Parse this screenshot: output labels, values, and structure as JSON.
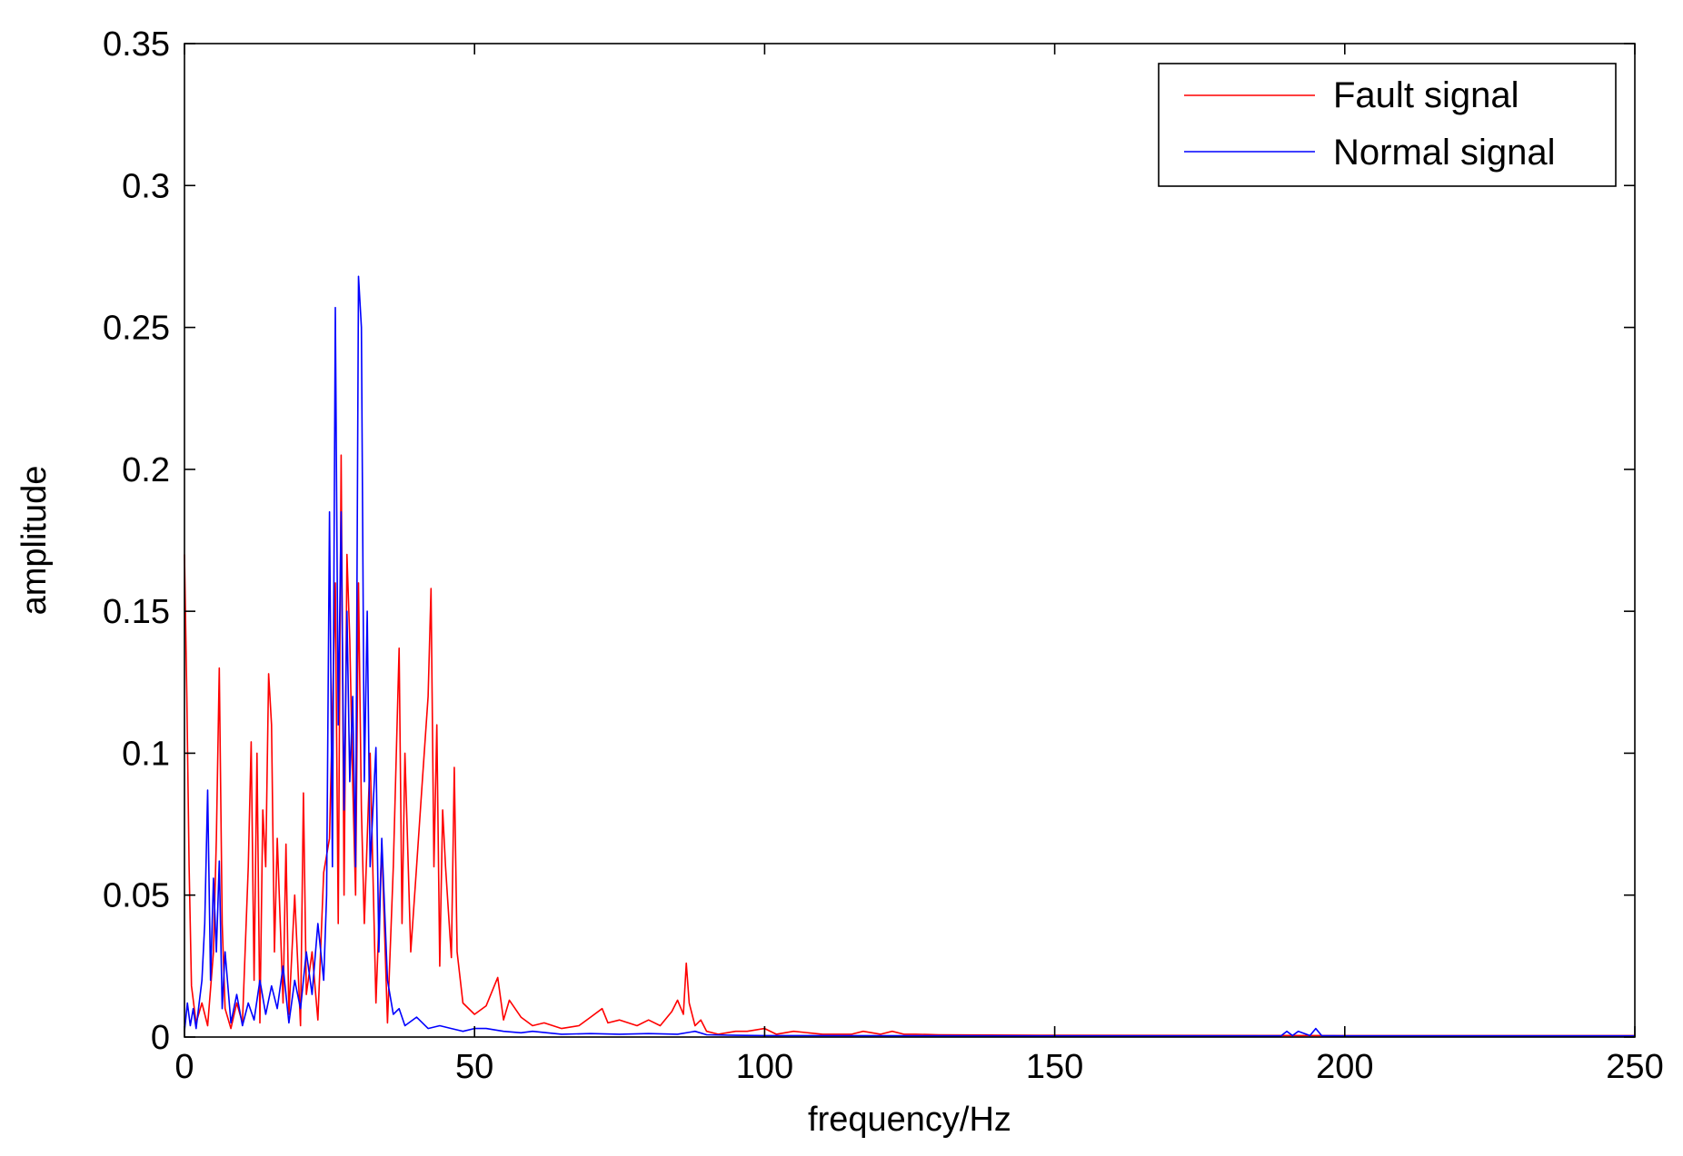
{
  "chart_data": {
    "type": "line",
    "title": "",
    "xlabel": "frequency/Hz",
    "ylabel": "amplitude",
    "xlim": [
      0,
      250
    ],
    "ylim": [
      0,
      0.35
    ],
    "xticks": [
      0,
      50,
      100,
      150,
      200,
      250
    ],
    "xtick_labels": [
      "0",
      "50",
      "100",
      "150",
      "200",
      "250"
    ],
    "yticks": [
      0,
      0.05,
      0.1,
      0.15,
      0.2,
      0.25,
      0.3,
      0.35
    ],
    "ytick_labels": [
      "0",
      "0.05",
      "0.1",
      "0.15",
      "0.2",
      "0.25",
      "0.3",
      "0.35"
    ],
    "grid": false,
    "legend_position": "top-right",
    "series": [
      {
        "name": "Fault signal",
        "color": "#ff0000",
        "x": [
          0,
          0.4,
          0.8,
          1.2,
          2,
          3,
          4,
          5,
          5.5,
          6,
          6.5,
          7,
          8,
          9,
          10,
          11,
          11.5,
          12,
          12.5,
          13,
          13.5,
          14,
          14.5,
          15,
          15.5,
          16,
          17,
          17.5,
          18,
          19,
          20,
          20.5,
          21,
          22,
          23,
          24,
          25,
          26,
          26.5,
          27,
          27.5,
          28,
          28.5,
          29,
          29.5,
          30,
          30.5,
          31,
          32,
          33,
          34,
          35,
          36,
          37,
          37.5,
          38,
          39,
          40,
          41,
          42,
          42.5,
          43,
          43.5,
          44,
          44.5,
          45,
          46,
          46.5,
          47,
          48,
          50,
          52,
          54,
          55,
          56,
          58,
          60,
          62,
          65,
          68,
          70,
          72,
          73,
          75,
          78,
          80,
          82,
          84,
          85,
          86,
          86.5,
          87,
          88,
          89,
          90,
          92,
          95,
          97,
          100,
          102,
          105,
          110,
          115,
          117,
          120,
          122,
          124,
          126,
          130,
          150,
          200,
          250
        ],
        "y": [
          0.17,
          0.12,
          0.06,
          0.018,
          0.005,
          0.012,
          0.004,
          0.03,
          0.07,
          0.13,
          0.04,
          0.01,
          0.003,
          0.012,
          0.005,
          0.06,
          0.104,
          0.02,
          0.1,
          0.005,
          0.08,
          0.06,
          0.128,
          0.11,
          0.03,
          0.07,
          0.012,
          0.068,
          0.008,
          0.05,
          0.004,
          0.086,
          0.015,
          0.03,
          0.006,
          0.058,
          0.07,
          0.16,
          0.04,
          0.205,
          0.05,
          0.17,
          0.14,
          0.09,
          0.05,
          0.16,
          0.08,
          0.04,
          0.1,
          0.012,
          0.068,
          0.005,
          0.06,
          0.137,
          0.04,
          0.1,
          0.03,
          0.06,
          0.09,
          0.12,
          0.158,
          0.06,
          0.11,
          0.025,
          0.08,
          0.06,
          0.028,
          0.095,
          0.03,
          0.012,
          0.008,
          0.011,
          0.021,
          0.006,
          0.013,
          0.007,
          0.004,
          0.005,
          0.003,
          0.004,
          0.007,
          0.01,
          0.005,
          0.006,
          0.004,
          0.006,
          0.004,
          0.009,
          0.013,
          0.008,
          0.026,
          0.012,
          0.004,
          0.006,
          0.002,
          0.001,
          0.002,
          0.002,
          0.003,
          0.001,
          0.002,
          0.001,
          0.001,
          0.002,
          0.001,
          0.002,
          0.001,
          0.001,
          0.0008,
          0.0006,
          0.0005,
          0.0005
        ]
      },
      {
        "name": "Normal signal",
        "color": "#0000ff",
        "x": [
          0,
          0.5,
          1,
          1.5,
          2,
          3,
          3.5,
          4,
          4.5,
          5,
          5.5,
          6,
          6.5,
          7,
          8,
          9,
          10,
          11,
          12,
          13,
          14,
          15,
          16,
          17,
          18,
          19,
          20,
          21,
          22,
          23,
          24,
          24.5,
          25,
          25.5,
          26,
          26.5,
          27,
          27.5,
          28,
          28.5,
          29,
          29.5,
          30,
          30.5,
          31,
          31.5,
          32,
          33,
          33.5,
          34,
          35,
          36,
          37,
          38,
          40,
          42,
          44,
          46,
          48,
          50,
          52,
          55,
          58,
          60,
          65,
          70,
          75,
          80,
          85,
          88,
          90,
          95,
          100,
          150,
          189,
          190,
          191,
          192,
          194,
          195,
          196,
          200,
          250
        ],
        "y": [
          0.002,
          0.012,
          0.004,
          0.01,
          0.003,
          0.02,
          0.04,
          0.087,
          0.02,
          0.056,
          0.03,
          0.062,
          0.01,
          0.03,
          0.005,
          0.015,
          0.004,
          0.012,
          0.006,
          0.02,
          0.008,
          0.018,
          0.01,
          0.025,
          0.005,
          0.02,
          0.01,
          0.03,
          0.015,
          0.04,
          0.02,
          0.05,
          0.185,
          0.06,
          0.257,
          0.11,
          0.185,
          0.08,
          0.15,
          0.09,
          0.12,
          0.06,
          0.268,
          0.25,
          0.09,
          0.15,
          0.06,
          0.102,
          0.03,
          0.07,
          0.02,
          0.008,
          0.01,
          0.004,
          0.007,
          0.003,
          0.004,
          0.003,
          0.002,
          0.003,
          0.003,
          0.002,
          0.0015,
          0.002,
          0.001,
          0.0012,
          0.001,
          0.0012,
          0.001,
          0.002,
          0.0008,
          0.0006,
          0.0005,
          0.0004,
          0.0004,
          0.002,
          0.0005,
          0.002,
          0.0005,
          0.003,
          0.0005,
          0.0004,
          0.0004
        ]
      }
    ]
  }
}
